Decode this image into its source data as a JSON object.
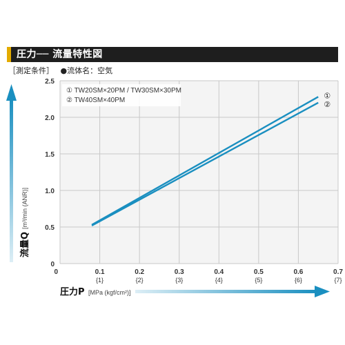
{
  "header": {
    "title": "圧力── 流量特性図",
    "accent_color": "#e3ab00",
    "bg_color": "#1e1e1e"
  },
  "conditions": {
    "label": "［測定条件］",
    "fluid": "●流体名：空気"
  },
  "chart_data": {
    "type": "line",
    "title": "",
    "xlabel": "圧力P",
    "xunit": "[MPa (kgf/cm²)]",
    "ylabel": "流量Q",
    "yunit": "[m³/min (ANR)]",
    "xlim": [
      0,
      0.7
    ],
    "ylim": [
      0,
      2.5
    ],
    "xticks": [
      "0",
      "0.1",
      "0.2",
      "0.3",
      "0.4",
      "0.5",
      "0.6",
      "0.7"
    ],
    "xticks_sub": [
      "",
      "{1}",
      "{2}",
      "{3}",
      "{4}",
      "{5}",
      "{6}",
      "{7}"
    ],
    "yticks": [
      "0",
      "0.5",
      "1.0",
      "1.5",
      "2.0",
      "2.5"
    ],
    "grid": true,
    "legend": [
      "① TW20SM×20PM / TW30SM×30PM",
      "② TW40SM×40PM"
    ],
    "series": [
      {
        "label": "①",
        "color": "#1a8fc0",
        "points": [
          [
            0.08,
            0.53
          ],
          [
            0.65,
            2.28
          ]
        ]
      },
      {
        "label": "②",
        "color": "#1a8fc0",
        "points": [
          [
            0.08,
            0.52
          ],
          [
            0.65,
            2.2
          ]
        ]
      }
    ],
    "arrow_color": "#1a8fc0"
  }
}
